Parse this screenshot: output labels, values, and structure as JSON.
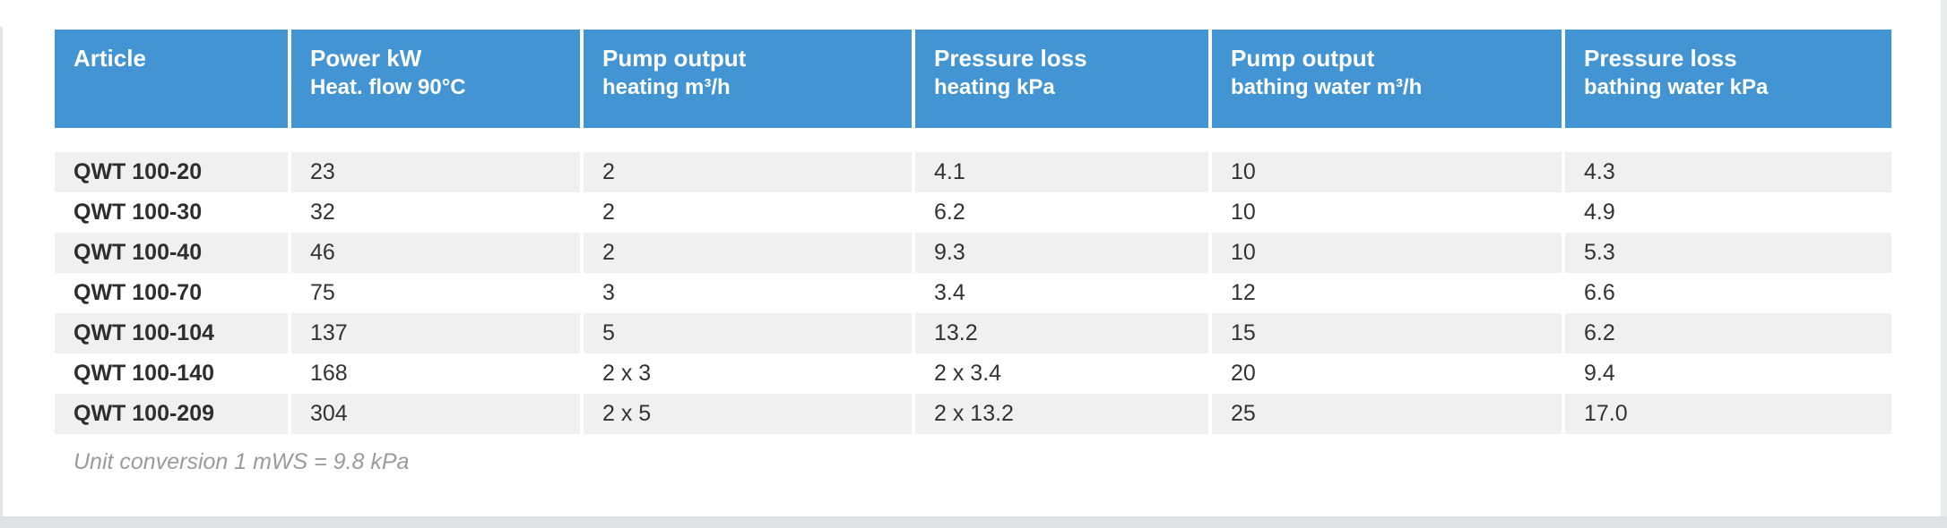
{
  "table": {
    "columns": [
      {
        "line1": "Article",
        "line2": ""
      },
      {
        "line1": "Power kW",
        "line2": "Heat. flow 90°C"
      },
      {
        "line1": "Pump output",
        "line2": "heating m³/h"
      },
      {
        "line1": "Pressure loss",
        "line2": "heating kPa"
      },
      {
        "line1": "Pump output",
        "line2": "bathing water m³/h"
      },
      {
        "line1": "Pressure loss",
        "line2": "bathing water kPa"
      }
    ],
    "rows": [
      {
        "article": "QWT 100-20",
        "power_kw": "23",
        "pump_output_heating": "2",
        "pressure_loss_heating": "4.1",
        "pump_output_bathing": "10",
        "pressure_loss_bathing": "4.3"
      },
      {
        "article": "QWT 100-30",
        "power_kw": "32",
        "pump_output_heating": "2",
        "pressure_loss_heating": "6.2",
        "pump_output_bathing": "10",
        "pressure_loss_bathing": "4.9"
      },
      {
        "article": "QWT 100-40",
        "power_kw": "46",
        "pump_output_heating": "2",
        "pressure_loss_heating": "9.3",
        "pump_output_bathing": "10",
        "pressure_loss_bathing": "5.3"
      },
      {
        "article": "QWT 100-70",
        "power_kw": "75",
        "pump_output_heating": "3",
        "pressure_loss_heating": "3.4",
        "pump_output_bathing": "12",
        "pressure_loss_bathing": "6.6"
      },
      {
        "article": "QWT 100-104",
        "power_kw": "137",
        "pump_output_heating": "5",
        "pressure_loss_heating": "13.2",
        "pump_output_bathing": "15",
        "pressure_loss_bathing": "6.2"
      },
      {
        "article": "QWT 100-140",
        "power_kw": "168",
        "pump_output_heating": "2 x 3",
        "pressure_loss_heating": "2 x 3.4",
        "pump_output_bathing": "20",
        "pressure_loss_bathing": "9.4"
      },
      {
        "article": "QWT 100-209",
        "power_kw": "304",
        "pump_output_heating": "2 x 5",
        "pressure_loss_heating": "2 x 13.2",
        "pump_output_bathing": "25",
        "pressure_loss_bathing": "17.0"
      }
    ],
    "row_field_order": [
      "article",
      "power_kw",
      "pump_output_heating",
      "pressure_loss_heating",
      "pump_output_bathing",
      "pressure_loss_bathing"
    ],
    "footnote": "Unit conversion 1 mWS = 9.8 kPa"
  },
  "colors": {
    "header_bg": "#4295d2",
    "header_text": "#ffffff",
    "row_stripe_bg": "#f0f0f0",
    "row_text": "#333333",
    "footnote_text": "#9b9b9b"
  }
}
